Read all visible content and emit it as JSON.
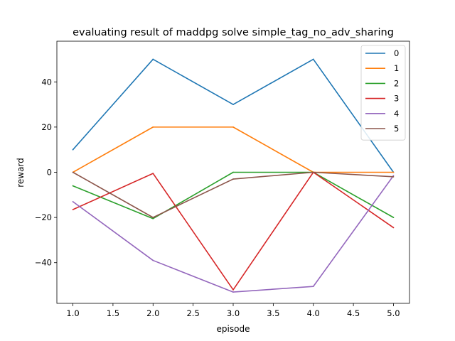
{
  "chart_data": {
    "type": "line",
    "title": "evaluating result of maddpg solve simple_tag_no_adv_sharing",
    "xlabel": "episode",
    "ylabel": "reward",
    "x": [
      1.0,
      2.0,
      3.0,
      4.0,
      5.0
    ],
    "xlim": [
      0.8,
      5.2
    ],
    "ylim": [
      -58,
      58
    ],
    "xticks": [
      1.0,
      1.5,
      2.0,
      2.5,
      3.0,
      3.5,
      4.0,
      4.5,
      5.0
    ],
    "xtick_labels": [
      "1.0",
      "1.5",
      "2.0",
      "2.5",
      "3.0",
      "3.5",
      "4.0",
      "4.5",
      "5.0"
    ],
    "yticks": [
      -40,
      -20,
      0,
      20,
      40
    ],
    "ytick_labels": [
      "−40",
      "−20",
      "0",
      "20",
      "40"
    ],
    "grid": false,
    "legend_position": "top-right",
    "series": [
      {
        "name": "0",
        "color": "#1f77b4",
        "values": [
          10,
          50,
          30,
          50,
          0
        ]
      },
      {
        "name": "1",
        "color": "#ff7f0e",
        "values": [
          0,
          20,
          20,
          0,
          0
        ]
      },
      {
        "name": "2",
        "color": "#2ca02c",
        "values": [
          -6,
          -20.5,
          0,
          0,
          -20
        ]
      },
      {
        "name": "3",
        "color": "#d62728",
        "values": [
          -16.5,
          -0.5,
          -52,
          0,
          -24.5
        ]
      },
      {
        "name": "4",
        "color": "#9467bd",
        "values": [
          -13,
          -39,
          -53,
          -50.5,
          -1.5
        ]
      },
      {
        "name": "5",
        "color": "#8c564b",
        "values": [
          0,
          -20,
          -3,
          0,
          -2
        ]
      }
    ]
  }
}
